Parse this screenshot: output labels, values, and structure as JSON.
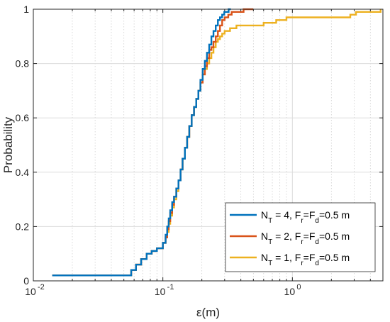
{
  "chart_data": {
    "type": "line",
    "xscale": "log",
    "xlim": [
      0.01,
      5
    ],
    "ylim": [
      0,
      1
    ],
    "xlabel": "ε(m)",
    "ylabel": "Probability",
    "grid": true,
    "legend_position": "bottom-right",
    "x_ticks": [
      {
        "value": 0.01,
        "base": "10",
        "exp": "-2"
      },
      {
        "value": 0.1,
        "base": "10",
        "exp": "-1"
      },
      {
        "value": 1,
        "base": "10",
        "exp": "0"
      }
    ],
    "y_ticks": [
      {
        "value": 0,
        "label": "0"
      },
      {
        "value": 0.2,
        "label": "0.2"
      },
      {
        "value": 0.4,
        "label": "0.4"
      },
      {
        "value": 0.6,
        "label": "0.6"
      },
      {
        "value": 0.8,
        "label": "0.8"
      },
      {
        "value": 1,
        "label": "1"
      }
    ],
    "series": [
      {
        "name_parts": {
          "a": "N",
          "a_sub": "T",
          "b": " = 4, F",
          "b_sub": "r",
          "c": "=F",
          "c_sub": "d",
          "d": "=0.5 m"
        },
        "color": "#0072BD",
        "x": [
          0.014,
          0.053,
          0.057,
          0.062,
          0.068,
          0.075,
          0.082,
          0.09,
          0.1,
          0.105,
          0.108,
          0.111,
          0.114,
          0.118,
          0.122,
          0.127,
          0.132,
          0.137,
          0.142,
          0.148,
          0.154,
          0.16,
          0.167,
          0.174,
          0.181,
          0.188,
          0.195,
          0.203,
          0.211,
          0.219,
          0.228,
          0.237,
          0.246,
          0.256,
          0.266,
          0.276,
          0.287,
          0.298,
          0.31,
          0.322,
          0.335
        ],
        "y": [
          0.02,
          0.02,
          0.04,
          0.06,
          0.08,
          0.1,
          0.11,
          0.12,
          0.14,
          0.17,
          0.2,
          0.23,
          0.26,
          0.29,
          0.31,
          0.34,
          0.37,
          0.41,
          0.45,
          0.49,
          0.53,
          0.57,
          0.61,
          0.64,
          0.67,
          0.7,
          0.74,
          0.78,
          0.81,
          0.84,
          0.87,
          0.9,
          0.92,
          0.94,
          0.96,
          0.97,
          0.98,
          0.99,
          0.99,
          1.0,
          1.0
        ]
      },
      {
        "name_parts": {
          "a": "N",
          "a_sub": "T",
          "b": " = 2, F",
          "b_sub": "r",
          "c": "=F",
          "c_sub": "d",
          "d": "=0.5 m"
        },
        "color": "#D95319",
        "x": [
          0.014,
          0.053,
          0.057,
          0.062,
          0.068,
          0.075,
          0.082,
          0.09,
          0.1,
          0.105,
          0.108,
          0.111,
          0.114,
          0.118,
          0.122,
          0.127,
          0.132,
          0.137,
          0.142,
          0.148,
          0.154,
          0.16,
          0.167,
          0.174,
          0.181,
          0.188,
          0.195,
          0.203,
          0.211,
          0.219,
          0.228,
          0.237,
          0.246,
          0.256,
          0.266,
          0.276,
          0.287,
          0.3,
          0.32,
          0.34,
          0.37,
          0.42,
          0.5
        ],
        "y": [
          0.02,
          0.02,
          0.04,
          0.06,
          0.08,
          0.1,
          0.11,
          0.12,
          0.14,
          0.16,
          0.19,
          0.22,
          0.25,
          0.28,
          0.31,
          0.34,
          0.37,
          0.41,
          0.45,
          0.49,
          0.53,
          0.57,
          0.61,
          0.64,
          0.67,
          0.7,
          0.73,
          0.76,
          0.79,
          0.82,
          0.85,
          0.86,
          0.88,
          0.9,
          0.92,
          0.94,
          0.96,
          0.97,
          0.98,
          0.99,
          0.99,
          1.0,
          1.0
        ]
      },
      {
        "name_parts": {
          "a": "N",
          "a_sub": "T",
          "b": " = 1, F",
          "b_sub": "r",
          "c": "=F",
          "c_sub": "d",
          "d": "=0.5 m"
        },
        "color": "#EDB120",
        "x": [
          0.014,
          0.053,
          0.057,
          0.062,
          0.068,
          0.075,
          0.082,
          0.09,
          0.1,
          0.105,
          0.108,
          0.111,
          0.114,
          0.118,
          0.122,
          0.127,
          0.132,
          0.137,
          0.142,
          0.148,
          0.154,
          0.16,
          0.167,
          0.174,
          0.181,
          0.188,
          0.195,
          0.203,
          0.211,
          0.219,
          0.228,
          0.237,
          0.246,
          0.256,
          0.266,
          0.276,
          0.287,
          0.3,
          0.33,
          0.37,
          0.6,
          0.75,
          0.9,
          2.8,
          3.1,
          4.8
        ],
        "y": [
          0.02,
          0.02,
          0.04,
          0.06,
          0.08,
          0.1,
          0.11,
          0.12,
          0.14,
          0.16,
          0.18,
          0.21,
          0.24,
          0.27,
          0.3,
          0.33,
          0.37,
          0.41,
          0.45,
          0.49,
          0.53,
          0.57,
          0.61,
          0.64,
          0.67,
          0.7,
          0.73,
          0.76,
          0.78,
          0.8,
          0.82,
          0.84,
          0.86,
          0.88,
          0.89,
          0.9,
          0.91,
          0.92,
          0.93,
          0.94,
          0.95,
          0.96,
          0.97,
          0.98,
          0.99,
          1.0
        ]
      }
    ]
  }
}
